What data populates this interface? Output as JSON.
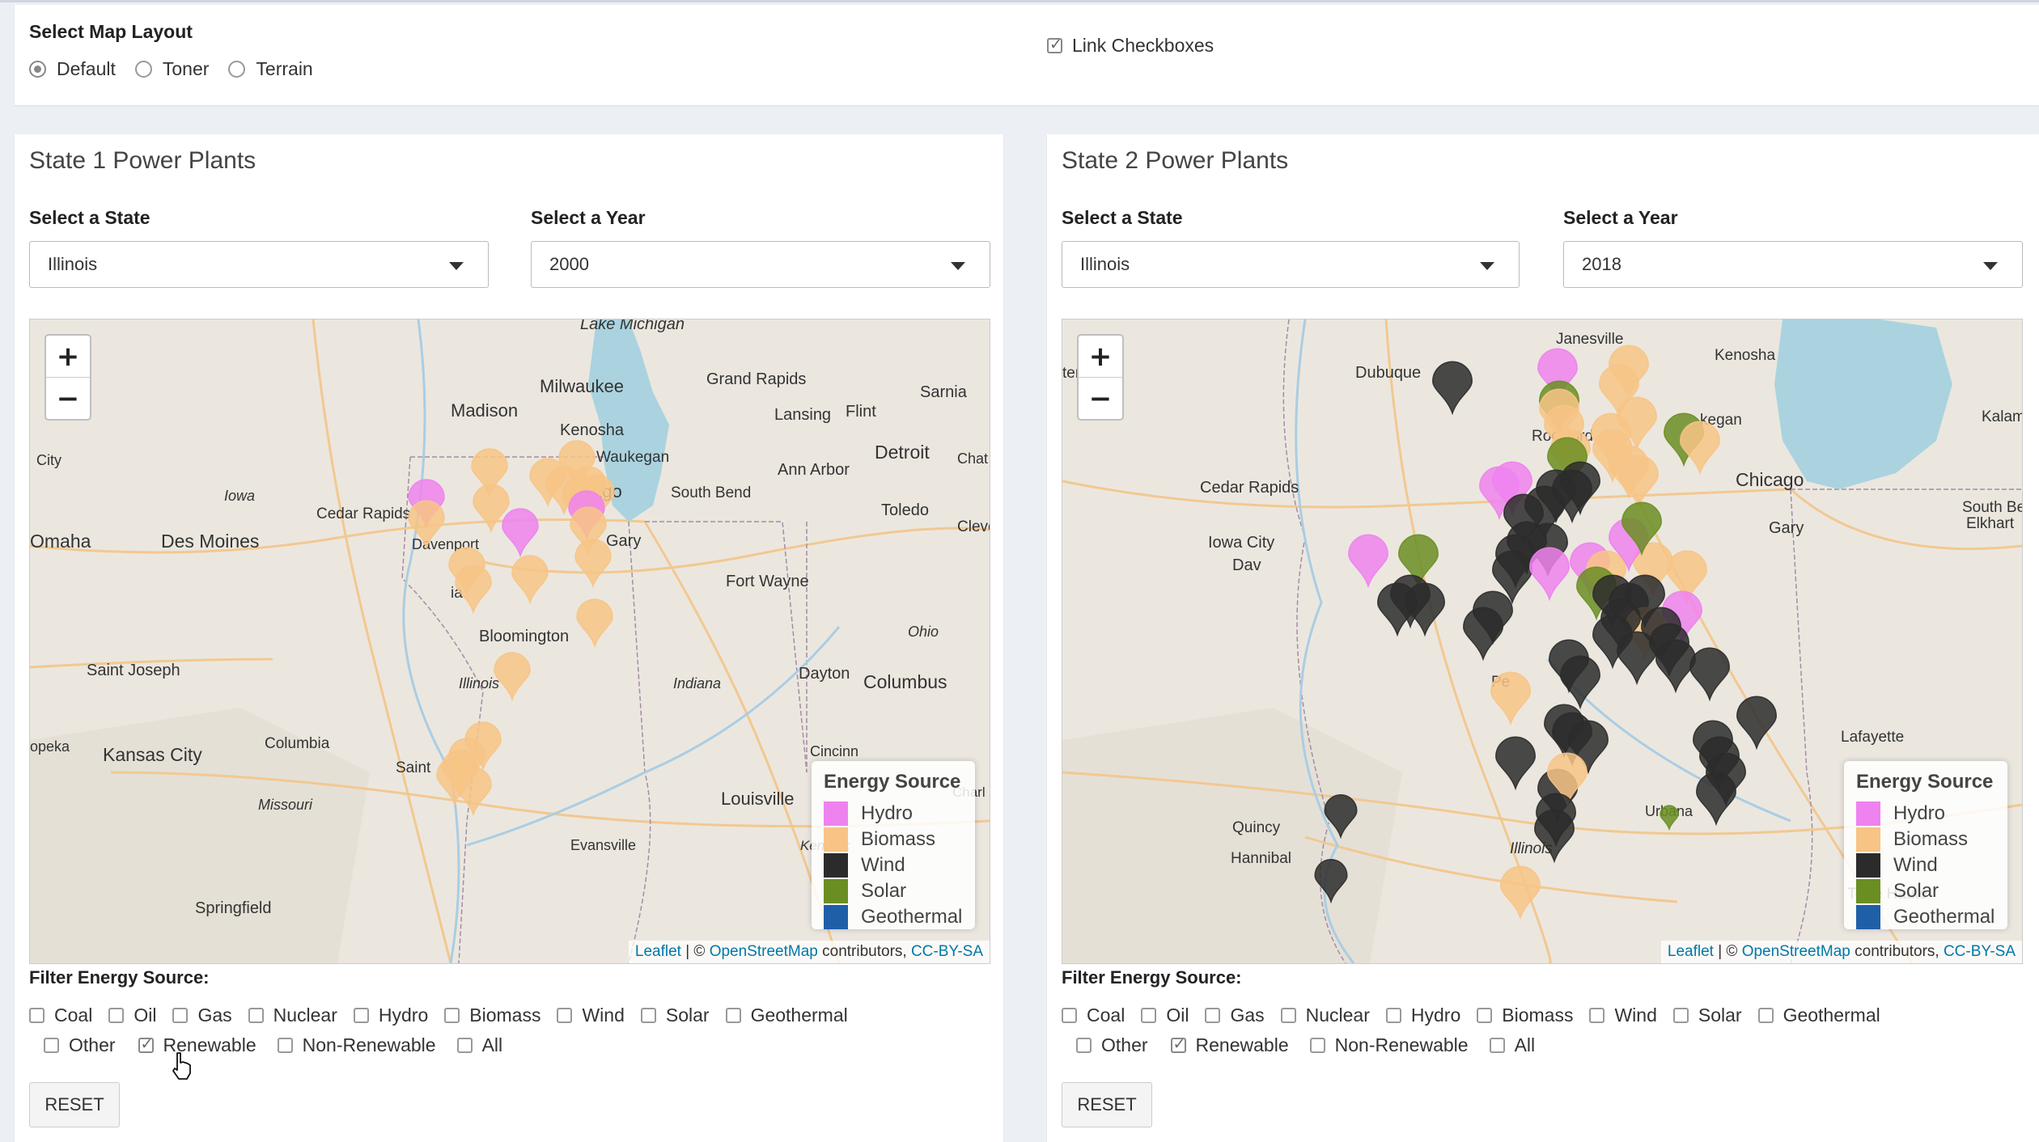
{
  "layout": {
    "title": "Select Map Layout",
    "options": [
      "Default",
      "Toner",
      "Terrain"
    ],
    "selected": "Default",
    "link_checkboxes_label": "Link Checkboxes",
    "link_checked": true
  },
  "panels": [
    {
      "title": "State 1 Power Plants",
      "state_label": "Select a State",
      "state_value": "Illinois",
      "year_label": "Select a Year",
      "year_value": "2000",
      "filter_label": "Filter Energy Source:",
      "checkboxes_row1": [
        {
          "label": "Coal",
          "checked": false
        },
        {
          "label": "Oil",
          "checked": false
        },
        {
          "label": "Gas",
          "checked": false
        },
        {
          "label": "Nuclear",
          "checked": false
        },
        {
          "label": "Hydro",
          "checked": false
        },
        {
          "label": "Biomass",
          "checked": false
        },
        {
          "label": "Wind",
          "checked": false
        },
        {
          "label": "Solar",
          "checked": false
        },
        {
          "label": "Geothermal",
          "checked": false
        }
      ],
      "checkboxes_row2": [
        {
          "label": "Other",
          "checked": false
        },
        {
          "label": "Renewable",
          "checked": true
        },
        {
          "label": "Non-Renewable",
          "checked": false
        },
        {
          "label": "All",
          "checked": false
        }
      ],
      "reset_label": "RESET",
      "map_labels": [
        "Lake Michigan",
        "Milwaukee",
        "Madison",
        "Grand Rapids",
        "Sarnia",
        "Lansing",
        "Flint",
        "Kenosha",
        "Waukegan",
        "Detroit",
        "Chat",
        "Ann Arbor",
        "City",
        "Iowa",
        "Cedar Rapids",
        "South Bend",
        "Toledo",
        "Cleve",
        "Omaha",
        "Des Moines",
        "Davenport",
        "Gary",
        "Fort Wayne",
        "Ohio",
        "Bloomington",
        "Saint Joseph",
        "Illinois",
        "Indiana",
        "Dayton",
        "Columbus",
        "Kansas City",
        "Columbia",
        "Saint",
        "Cincinn",
        "opeka",
        "Missouri",
        "Louisville",
        "Charl",
        "Kentuck",
        "Evansville",
        "Springfield",
        "ia",
        "ago"
      ]
    },
    {
      "title": "State 2 Power Plants",
      "state_label": "Select a State",
      "state_value": "Illinois",
      "year_label": "Select a Year",
      "year_value": "2018",
      "filter_label": "Filter Energy Source:",
      "checkboxes_row1": [
        {
          "label": "Coal",
          "checked": false
        },
        {
          "label": "Oil",
          "checked": false
        },
        {
          "label": "Gas",
          "checked": false
        },
        {
          "label": "Nuclear",
          "checked": false
        },
        {
          "label": "Hydro",
          "checked": false
        },
        {
          "label": "Biomass",
          "checked": false
        },
        {
          "label": "Wind",
          "checked": false
        },
        {
          "label": "Solar",
          "checked": false
        },
        {
          "label": "Geothermal",
          "checked": false
        }
      ],
      "checkboxes_row2": [
        {
          "label": "Other",
          "checked": false
        },
        {
          "label": "Renewable",
          "checked": true
        },
        {
          "label": "Non-Renewable",
          "checked": false
        },
        {
          "label": "All",
          "checked": false
        }
      ],
      "reset_label": "RESET",
      "map_labels": [
        "Janesville",
        "Kenosha",
        "terloo",
        "Dubuque",
        "Rockford",
        "kegan",
        "Kalam",
        "Cedar Rapids",
        "Chicago",
        "Iowa City",
        "Gary",
        "South Bend",
        "Elkhart",
        "Dav",
        "Pe",
        "Lafayette",
        "Urbana",
        "Quincy",
        "Hannibal",
        "Illinois",
        "Terre Haute"
      ]
    }
  ],
  "legend": {
    "title": "Energy Source",
    "items": [
      {
        "label": "Hydro",
        "color": "#ee82ee"
      },
      {
        "label": "Biomass",
        "color": "#f7c486"
      },
      {
        "label": "Wind",
        "color": "#2b2b2b"
      },
      {
        "label": "Solar",
        "color": "#6b8e23"
      },
      {
        "label": "Geothermal",
        "color": "#1f5fa8"
      }
    ]
  },
  "attribution": {
    "leaflet": "Leaflet",
    "sep": "| ©",
    "osm": "OpenStreetMap",
    "contributors": "contributors,",
    "license": "CC-BY-SA"
  },
  "zoom": {
    "in": "+",
    "out": "−"
  },
  "icons": {
    "zoom_in": "plus-icon",
    "zoom_out": "minus-icon",
    "dropdown": "caret-down-icon",
    "cursor": "hand-pointer-icon"
  }
}
